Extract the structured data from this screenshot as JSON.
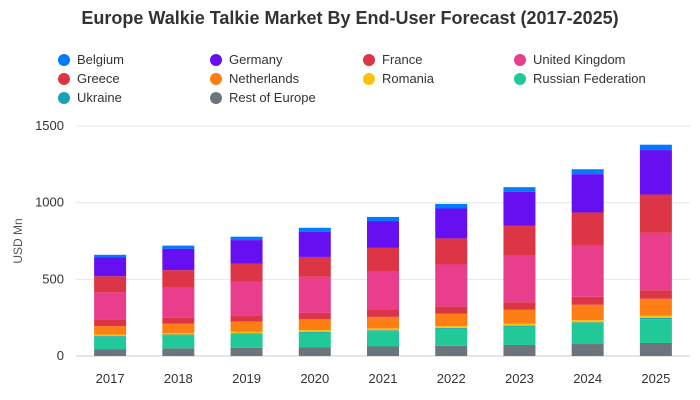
{
  "chart_data": {
    "type": "bar",
    "stacked": true,
    "title": "Europe Walkie Talkie Market By End-User Forecast (2017-2025)",
    "xlabel": "",
    "ylabel": "USD Mn",
    "ylim": [
      0,
      1500
    ],
    "yticks": [
      0,
      500,
      1000,
      1500
    ],
    "grid": true,
    "legend_position": "top",
    "categories": [
      "2017",
      "2018",
      "2019",
      "2020",
      "2021",
      "2022",
      "2023",
      "2024",
      "2025"
    ],
    "series": [
      {
        "name": "Rest of Europe",
        "color": "#6c757d",
        "values": [
          45,
          50,
          53,
          58,
          62,
          67,
          72,
          78,
          85
        ]
      },
      {
        "name": "Russian Federation",
        "color": "#20c997",
        "values": [
          80,
          85,
          90,
          95,
          100,
          110,
          120,
          135,
          155
        ]
      },
      {
        "name": "Ukraine",
        "color": "#17a2b8",
        "values": [
          5,
          5,
          5,
          5,
          6,
          6,
          6,
          7,
          8
        ]
      },
      {
        "name": "Romania",
        "color": "#ffc107",
        "values": [
          10,
          10,
          11,
          11,
          12,
          12,
          13,
          14,
          15
        ]
      },
      {
        "name": "Netherlands",
        "color": "#fd7e14",
        "values": [
          55,
          60,
          65,
          70,
          75,
          80,
          90,
          100,
          110
        ]
      },
      {
        "name": "Greece",
        "color": "#dc3545",
        "values": [
          40,
          40,
          42,
          42,
          45,
          47,
          50,
          52,
          55
        ]
      },
      {
        "name": "United Kingdom",
        "color": "#e83e8c",
        "values": [
          180,
          200,
          220,
          235,
          250,
          275,
          305,
          335,
          375
        ]
      },
      {
        "name": "France",
        "color": "#dc3545",
        "values": [
          105,
          110,
          115,
          130,
          155,
          170,
          195,
          215,
          250
        ]
      },
      {
        "name": "Germany",
        "color": "#6610f2",
        "values": [
          125,
          140,
          155,
          165,
          175,
          195,
          220,
          250,
          290
        ]
      },
      {
        "name": "Belgium",
        "color": "#007bff",
        "values": [
          15,
          20,
          22,
          25,
          27,
          30,
          30,
          32,
          35
        ]
      }
    ],
    "legend": [
      {
        "name": "Belgium",
        "color": "#007bff"
      },
      {
        "name": "Germany",
        "color": "#6610f2"
      },
      {
        "name": "France",
        "color": "#dc3545"
      },
      {
        "name": "United Kingdom",
        "color": "#e83e8c"
      },
      {
        "name": "Greece",
        "color": "#dc3545"
      },
      {
        "name": "Netherlands",
        "color": "#fd7e14"
      },
      {
        "name": "Romania",
        "color": "#ffc107"
      },
      {
        "name": "Russian Federation",
        "color": "#20c997"
      },
      {
        "name": "Ukraine",
        "color": "#17a2b8"
      },
      {
        "name": "Rest of Europe",
        "color": "#6c757d"
      }
    ]
  }
}
